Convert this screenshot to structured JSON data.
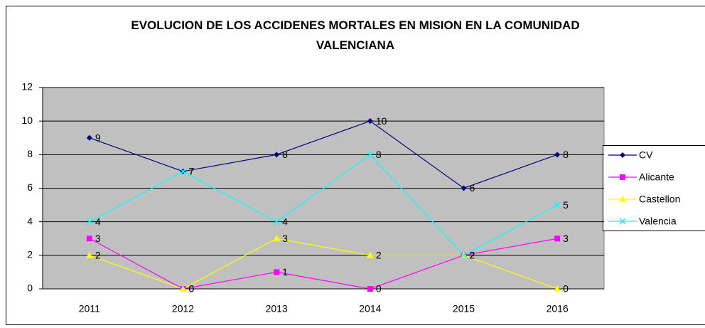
{
  "chart_data": {
    "type": "line",
    "title": "EVOLUCION DE LOS ACCIDENES MORTALES EN MISION EN LA COMUNIDAD VALENCIANA",
    "categories": [
      "2011",
      "2012",
      "2013",
      "2014",
      "2015",
      "2016"
    ],
    "series": [
      {
        "name": "CV",
        "color": "#000080",
        "marker": "diamond",
        "values": [
          9,
          7,
          8,
          10,
          6,
          8
        ]
      },
      {
        "name": "Alicante",
        "color": "#ff00ff",
        "marker": "square",
        "values": [
          3,
          0,
          1,
          0,
          2,
          3
        ]
      },
      {
        "name": "Castellon",
        "color": "#ffff00",
        "marker": "triangle",
        "values": [
          2,
          0,
          3,
          2,
          2,
          0
        ]
      },
      {
        "name": "Valencia",
        "color": "#00ffff",
        "marker": "x",
        "values": [
          4,
          7,
          4,
          8,
          2,
          5
        ]
      }
    ],
    "ylim": [
      0,
      12
    ],
    "yticks": [
      0,
      2,
      4,
      6,
      8,
      10,
      12
    ],
    "grid": true,
    "legend": "right"
  }
}
